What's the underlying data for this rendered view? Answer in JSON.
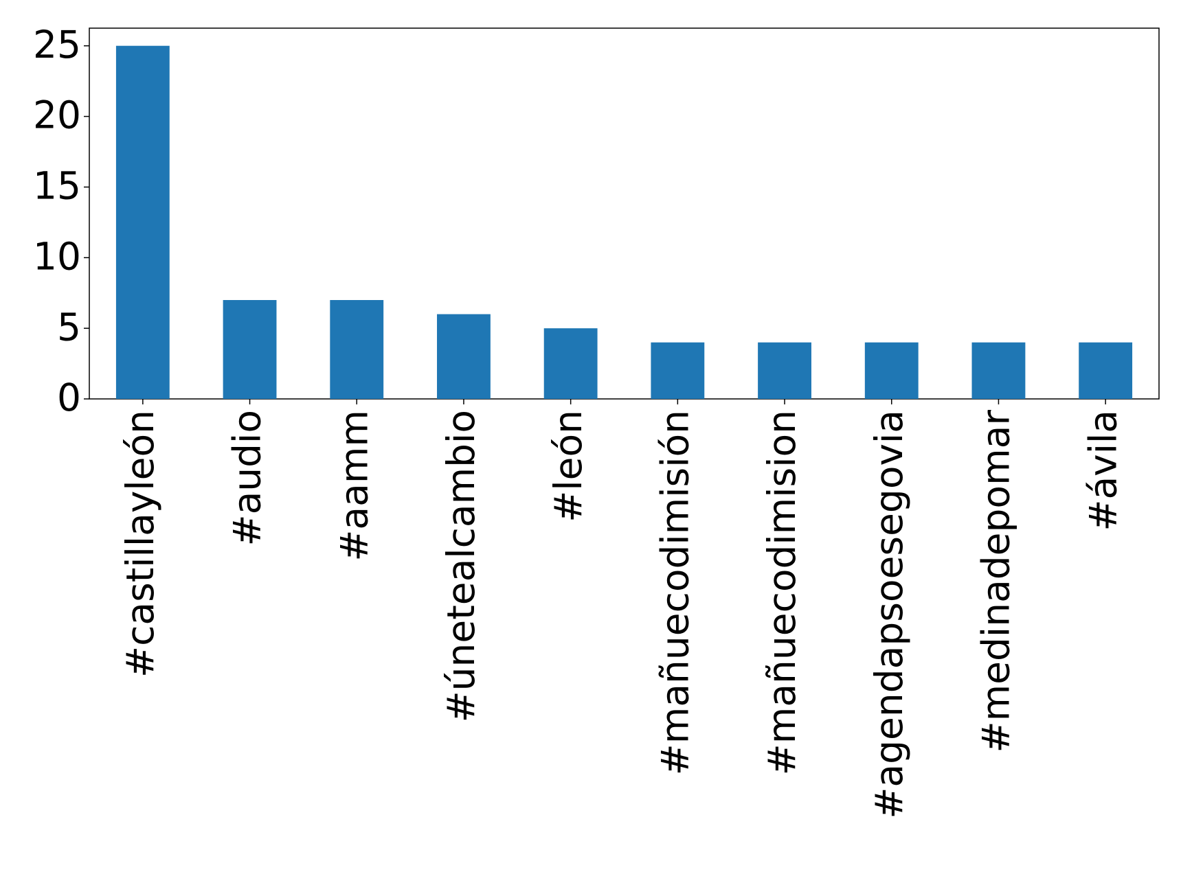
{
  "chart_data": {
    "type": "bar",
    "categories": [
      "#castillayleón",
      "#audio",
      "#aamm",
      "#únetealcambio",
      "#león",
      "#mañuecodimisión",
      "#mañuecodimision",
      "#agendapsoesegovia",
      "#medinadepomar",
      "#ávila"
    ],
    "values": [
      25,
      7,
      7,
      6,
      5,
      4,
      4,
      4,
      4,
      4
    ],
    "color": "#1f77b4",
    "ylim": [
      0,
      26.25
    ],
    "yticks": [
      0,
      5,
      10,
      15,
      20,
      25
    ],
    "grid": false
  }
}
